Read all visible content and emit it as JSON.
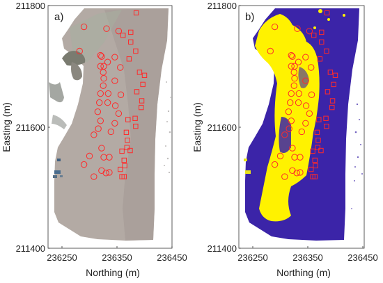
{
  "panels": [
    {
      "label": "a)",
      "image": "aerial-orthophoto",
      "x_ticks": [
        "236250",
        "236350",
        "236450"
      ],
      "y_ticks": [
        "211800",
        "211600",
        "211400"
      ],
      "xlabel": "Northing (m)",
      "ylabel": "Easting (m)"
    },
    {
      "label": "b)",
      "image": "binary-classification-map",
      "x_ticks": [
        "236250",
        "236350",
        "236450"
      ],
      "y_ticks": [
        "211800",
        "211600",
        "211400"
      ],
      "xlabel": "Northing (m)",
      "ylabel": "Easting (m)"
    }
  ],
  "colors": {
    "marker": "#ff2a2a",
    "class_blue": "#3b24a8",
    "class_yellow": "#fff200",
    "beach_grey": "#b3aaa4"
  },
  "markers": {
    "circles": [
      [
        236290,
        211765
      ],
      [
        236282,
        211725
      ],
      [
        236331,
        211762
      ],
      [
        236353,
        211758
      ],
      [
        236320,
        211718
      ],
      [
        236322,
        211716
      ],
      [
        236346,
        211715
      ],
      [
        236320,
        211700
      ],
      [
        236326,
        211700
      ],
      [
        236333,
        211707
      ],
      [
        236356,
        211698
      ],
      [
        236325,
        211690
      ],
      [
        236326,
        211680
      ],
      [
        236346,
        211676
      ],
      [
        236325,
        211668
      ],
      [
        236320,
        211655
      ],
      [
        236334,
        211655
      ],
      [
        236357,
        211653
      ],
      [
        236318,
        211640
      ],
      [
        236333,
        211640
      ],
      [
        236347,
        211635
      ],
      [
        236315,
        211625
      ],
      [
        236353,
        211622
      ],
      [
        236320,
        211610
      ],
      [
        236346,
        211606
      ],
      [
        236316,
        211597
      ],
      [
        236339,
        211592
      ],
      [
        236308,
        211587
      ],
      [
        236322,
        211565
      ],
      [
        236300,
        211552
      ],
      [
        236326,
        211550
      ],
      [
        236336,
        211550
      ],
      [
        236290,
        211538
      ],
      [
        236322,
        211528
      ],
      [
        236336,
        211525
      ],
      [
        236330,
        211524
      ],
      [
        236308,
        211518
      ]
    ],
    "squares": [
      [
        236385,
        211788
      ],
      [
        236375,
        211756
      ],
      [
        236361,
        211751
      ],
      [
        236375,
        211740
      ],
      [
        236384,
        211725
      ],
      [
        236372,
        211712
      ],
      [
        236391,
        211690
      ],
      [
        236400,
        211685
      ],
      [
        236397,
        211670
      ],
      [
        236386,
        211658
      ],
      [
        236395,
        211643
      ],
      [
        236394,
        211632
      ],
      [
        236383,
        211614
      ],
      [
        236370,
        211612
      ],
      [
        236384,
        211601
      ],
      [
        236367,
        211591
      ],
      [
        236369,
        211578
      ],
      [
        236368,
        211566
      ],
      [
        236374,
        211561
      ],
      [
        236359,
        211560
      ],
      [
        236363,
        211545
      ],
      [
        236364,
        211536
      ],
      [
        236356,
        211530
      ],
      [
        236359,
        211518
      ],
      [
        236363,
        211518
      ]
    ]
  }
}
